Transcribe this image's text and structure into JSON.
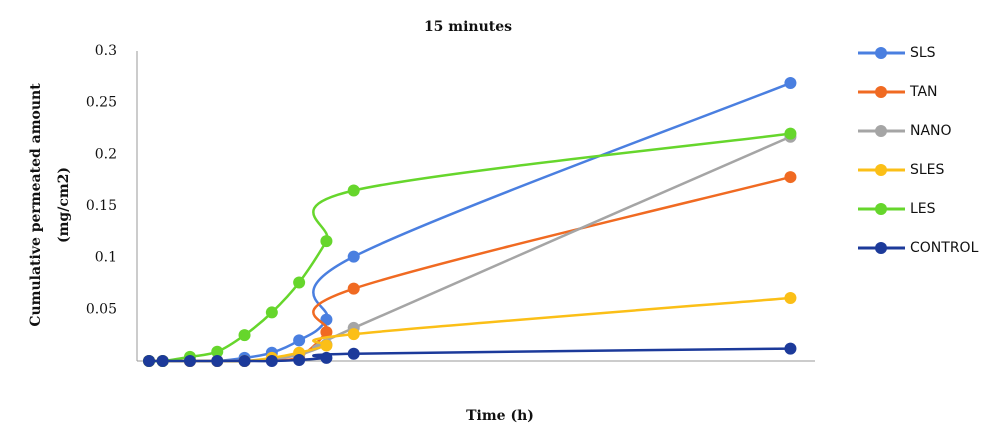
{
  "chart_data": {
    "type": "line",
    "title": "15 minutes",
    "x_label": "Time (h)",
    "y_label": [
      "Cumulative permeated amount",
      "(mg/cm2)"
    ],
    "x": [
      0,
      0.25,
      0.75,
      1.25,
      1.75,
      2.25,
      2.75,
      3.25,
      3.75,
      11.75
    ],
    "xlim": [
      -0.22,
      12.2
    ],
    "ylim": [
      0,
      0.3
    ],
    "yticks": [
      0.05,
      0.1,
      0.15,
      0.2,
      0.25,
      0.3
    ],
    "legend": "right",
    "series": [
      {
        "name": "SLS",
        "color": "#4a7fe0",
        "values": [
          0,
          0,
          0,
          0,
          0.003,
          0.008,
          0.02,
          0.04,
          0.101,
          0.269
        ]
      },
      {
        "name": "TAN",
        "color": "#f06a22",
        "values": [
          0,
          0,
          0,
          0,
          0,
          0.001,
          0.004,
          0.028,
          0.07,
          0.178
        ]
      },
      {
        "name": "NANO",
        "color": "#a5a5a5",
        "values": [
          0,
          0,
          0,
          0,
          0,
          0.002,
          0.006,
          0.016,
          0.032,
          0.217
        ]
      },
      {
        "name": "SLES",
        "color": "#fbbf17",
        "values": [
          0,
          0,
          0,
          0,
          0,
          0.003,
          0.008,
          0.015,
          0.026,
          0.061
        ]
      },
      {
        "name": "LES",
        "color": "#66d62c",
        "values": [
          0,
          0,
          0.004,
          0.009,
          0.025,
          0.047,
          0.076,
          0.116,
          0.165,
          0.22
        ]
      },
      {
        "name": "CONTROL",
        "color": "#1c3a9a",
        "values": [
          0,
          0,
          0,
          0,
          0,
          0,
          0.001,
          0.003,
          0.007,
          0.012
        ]
      }
    ]
  }
}
